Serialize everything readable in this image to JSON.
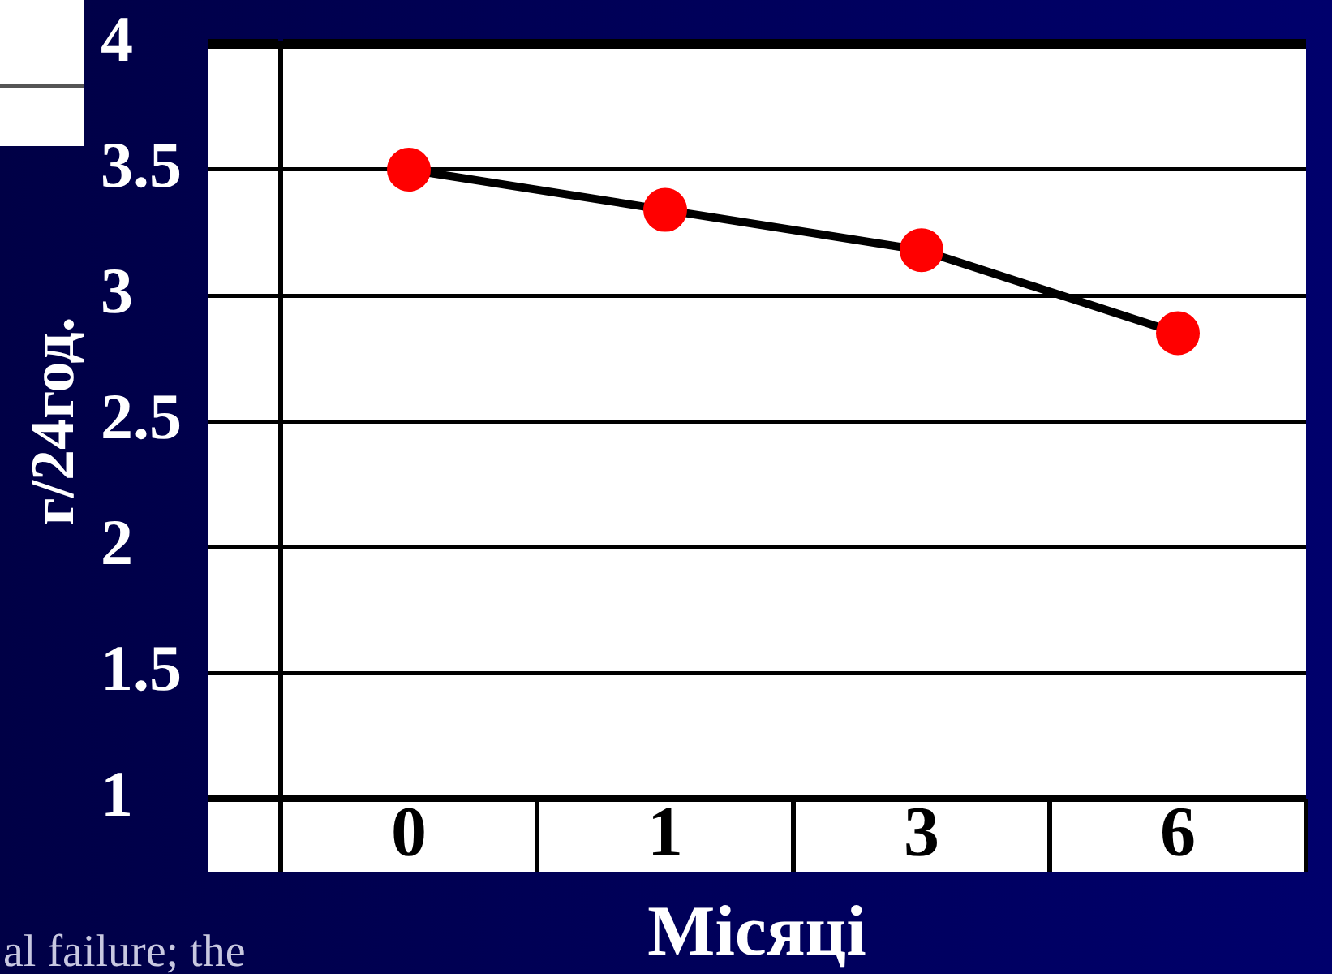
{
  "chart_data": {
    "type": "line",
    "xlabel": "Місяці",
    "ylabel": "г/24год.",
    "annotations": [
      "al failure; the"
    ],
    "categories": [
      "0",
      "1",
      "3",
      "6"
    ],
    "series": [
      {
        "color": "#000000",
        "colors": [
          "#ff0000",
          "#ff0000",
          "#ff0000",
          "#ff0000"
        ],
        "values": [
          3.5,
          3.34,
          3.18,
          2.85
        ]
      }
    ],
    "ylim": [
      1,
      4
    ],
    "yticks": [
      1,
      1.5,
      2,
      2.5,
      3,
      3.5,
      4
    ],
    "grid": "y",
    "marker": "circle",
    "line_style": "solid"
  }
}
